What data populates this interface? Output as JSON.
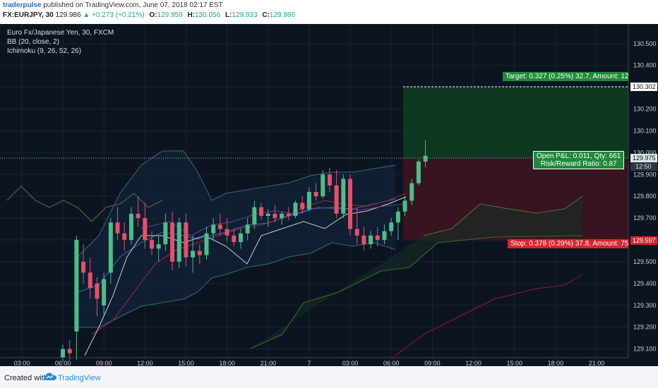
{
  "header": {
    "author": "traderpulse",
    "published": "published on TradingView.com, June 07, 2018 02:17 EST",
    "symbol": "FX:EURJPY, 30",
    "last": "129.986",
    "change": "▲ +0.273 (+0.21%)",
    "open_label": "O:",
    "open": "129.959",
    "high_label": "H:",
    "high": "130.056",
    "low_label": "L:",
    "low": "129.933",
    "close_label": "C:",
    "close": "129.986"
  },
  "legend": {
    "title": "Euro Fx/Japanese Yen, 30, FXCM",
    "bb": "BB (20, close, 2)",
    "ichimoku": "Ichimoku (9, 26, 52, 26)"
  },
  "position_tool": {
    "target_text": "Target: 0.327 (0.25%) 32.7, Amount: 12",
    "stop_text": "Stop: 0.378 (0.29%) 37.8, Amount: 75",
    "pnl_line1": "Open P&L: 0.011, Qty: 661",
    "pnl_line2": "Risk/Reward Ratio: 0.87",
    "target_price_label": "130.302",
    "stop_price_label": "129.597",
    "current_price_label": "129.975",
    "countdown": "12:50",
    "colors": {
      "profit": "#1f8a3a",
      "loss": "#d9232f",
      "target_zone": "#0f3a22",
      "stop_zone": "#3a1420"
    }
  },
  "footer": {
    "created_with": "Created with",
    "brand": "TradingView"
  },
  "chart_data": {
    "type": "candlestick",
    "title": "Euro Fx/Japanese Yen, 30, FXCM",
    "yaxis_labels": [
      "130.500",
      "130.400",
      "130.300",
      "130.200",
      "130.100",
      "130.000",
      "129.900",
      "129.800",
      "129.700",
      "129.600",
      "129.500",
      "129.400",
      "129.300",
      "129.200",
      "129.100"
    ],
    "yaxis_values": [
      130.5,
      130.4,
      130.3,
      130.2,
      130.1,
      130.0,
      129.9,
      129.8,
      129.7,
      129.6,
      129.5,
      129.4,
      129.3,
      129.2,
      129.1
    ],
    "ylim": [
      129.06,
      130.59
    ],
    "xaxis_labels": [
      "03:00",
      "06:00",
      "09:00",
      "12:00",
      "15:00",
      "18:00",
      "21:00",
      "7",
      "03:00",
      "06:00",
      "09:00",
      "12:00",
      "15:00",
      "18:00",
      "21:00"
    ],
    "candle_interval_minutes": 30,
    "first_candle": "06:00",
    "candles": [
      {
        "o": 129.06,
        "h": 129.12,
        "l": 129.04,
        "c": 129.1
      },
      {
        "o": 129.1,
        "h": 129.14,
        "l": 129.05,
        "c": 129.08
      },
      {
        "o": 129.18,
        "h": 129.62,
        "l": 129.05,
        "c": 129.6
      },
      {
        "o": 129.5,
        "h": 129.58,
        "l": 129.4,
        "c": 129.45
      },
      {
        "o": 129.45,
        "h": 129.52,
        "l": 129.33,
        "c": 129.38
      },
      {
        "o": 129.4,
        "h": 129.43,
        "l": 129.25,
        "c": 129.33
      },
      {
        "o": 129.3,
        "h": 129.45,
        "l": 129.25,
        "c": 129.42
      },
      {
        "o": 129.45,
        "h": 129.7,
        "l": 129.4,
        "c": 129.68
      },
      {
        "o": 129.68,
        "h": 129.75,
        "l": 129.6,
        "c": 129.63
      },
      {
        "o": 129.63,
        "h": 129.68,
        "l": 129.55,
        "c": 129.6
      },
      {
        "o": 129.6,
        "h": 129.75,
        "l": 129.58,
        "c": 129.72
      },
      {
        "o": 129.72,
        "h": 129.8,
        "l": 129.66,
        "c": 129.7
      },
      {
        "o": 129.7,
        "h": 129.77,
        "l": 129.56,
        "c": 129.6
      },
      {
        "o": 129.6,
        "h": 129.64,
        "l": 129.53,
        "c": 129.56
      },
      {
        "o": 129.56,
        "h": 129.62,
        "l": 129.5,
        "c": 129.58
      },
      {
        "o": 129.58,
        "h": 129.72,
        "l": 129.55,
        "c": 129.68
      },
      {
        "o": 129.68,
        "h": 129.73,
        "l": 129.46,
        "c": 129.5
      },
      {
        "o": 129.5,
        "h": 129.7,
        "l": 129.47,
        "c": 129.68
      },
      {
        "o": 129.68,
        "h": 129.72,
        "l": 129.48,
        "c": 129.52
      },
      {
        "o": 129.52,
        "h": 129.62,
        "l": 129.45,
        "c": 129.55
      },
      {
        "o": 129.55,
        "h": 129.58,
        "l": 129.49,
        "c": 129.53
      },
      {
        "o": 129.53,
        "h": 129.66,
        "l": 129.51,
        "c": 129.63
      },
      {
        "o": 129.63,
        "h": 129.7,
        "l": 129.6,
        "c": 129.67
      },
      {
        "o": 129.67,
        "h": 129.72,
        "l": 129.62,
        "c": 129.65
      },
      {
        "o": 129.65,
        "h": 129.7,
        "l": 129.59,
        "c": 129.62
      },
      {
        "o": 129.62,
        "h": 129.65,
        "l": 129.57,
        "c": 129.59
      },
      {
        "o": 129.59,
        "h": 129.65,
        "l": 129.56,
        "c": 129.63
      },
      {
        "o": 129.63,
        "h": 129.7,
        "l": 129.6,
        "c": 129.67
      },
      {
        "o": 129.67,
        "h": 129.78,
        "l": 129.65,
        "c": 129.75
      },
      {
        "o": 129.75,
        "h": 129.77,
        "l": 129.69,
        "c": 129.71
      },
      {
        "o": 129.71,
        "h": 129.74,
        "l": 129.66,
        "c": 129.72
      },
      {
        "o": 129.72,
        "h": 129.76,
        "l": 129.68,
        "c": 129.7
      },
      {
        "o": 129.7,
        "h": 129.73,
        "l": 129.67,
        "c": 129.72
      },
      {
        "o": 129.72,
        "h": 129.75,
        "l": 129.69,
        "c": 129.71
      },
      {
        "o": 129.71,
        "h": 129.78,
        "l": 129.7,
        "c": 129.77
      },
      {
        "o": 129.77,
        "h": 129.8,
        "l": 129.72,
        "c": 129.74
      },
      {
        "o": 129.74,
        "h": 129.84,
        "l": 129.73,
        "c": 129.82
      },
      {
        "o": 129.82,
        "h": 129.86,
        "l": 129.78,
        "c": 129.8
      },
      {
        "o": 129.8,
        "h": 129.92,
        "l": 129.79,
        "c": 129.9
      },
      {
        "o": 129.9,
        "h": 129.93,
        "l": 129.82,
        "c": 129.85
      },
      {
        "o": 129.85,
        "h": 129.92,
        "l": 129.7,
        "c": 129.72
      },
      {
        "o": 129.72,
        "h": 129.9,
        "l": 129.7,
        "c": 129.88
      },
      {
        "o": 129.88,
        "h": 129.9,
        "l": 129.62,
        "c": 129.65
      },
      {
        "o": 129.65,
        "h": 129.75,
        "l": 129.58,
        "c": 129.62
      },
      {
        "o": 129.62,
        "h": 129.66,
        "l": 129.55,
        "c": 129.58
      },
      {
        "o": 129.58,
        "h": 129.64,
        "l": 129.56,
        "c": 129.62
      },
      {
        "o": 129.62,
        "h": 129.66,
        "l": 129.57,
        "c": 129.6
      },
      {
        "o": 129.6,
        "h": 129.67,
        "l": 129.58,
        "c": 129.64
      },
      {
        "o": 129.64,
        "h": 129.7,
        "l": 129.62,
        "c": 129.68
      },
      {
        "o": 129.68,
        "h": 129.75,
        "l": 129.6,
        "c": 129.73
      },
      {
        "o": 129.73,
        "h": 129.8,
        "l": 129.71,
        "c": 129.78
      },
      {
        "o": 129.78,
        "h": 129.88,
        "l": 129.76,
        "c": 129.86
      },
      {
        "o": 129.86,
        "h": 129.97,
        "l": 129.85,
        "c": 129.96
      },
      {
        "o": 129.959,
        "h": 130.056,
        "l": 129.933,
        "c": 129.986
      }
    ],
    "levels": {
      "target": 130.302,
      "stop": 129.597,
      "entry": 129.975
    }
  }
}
